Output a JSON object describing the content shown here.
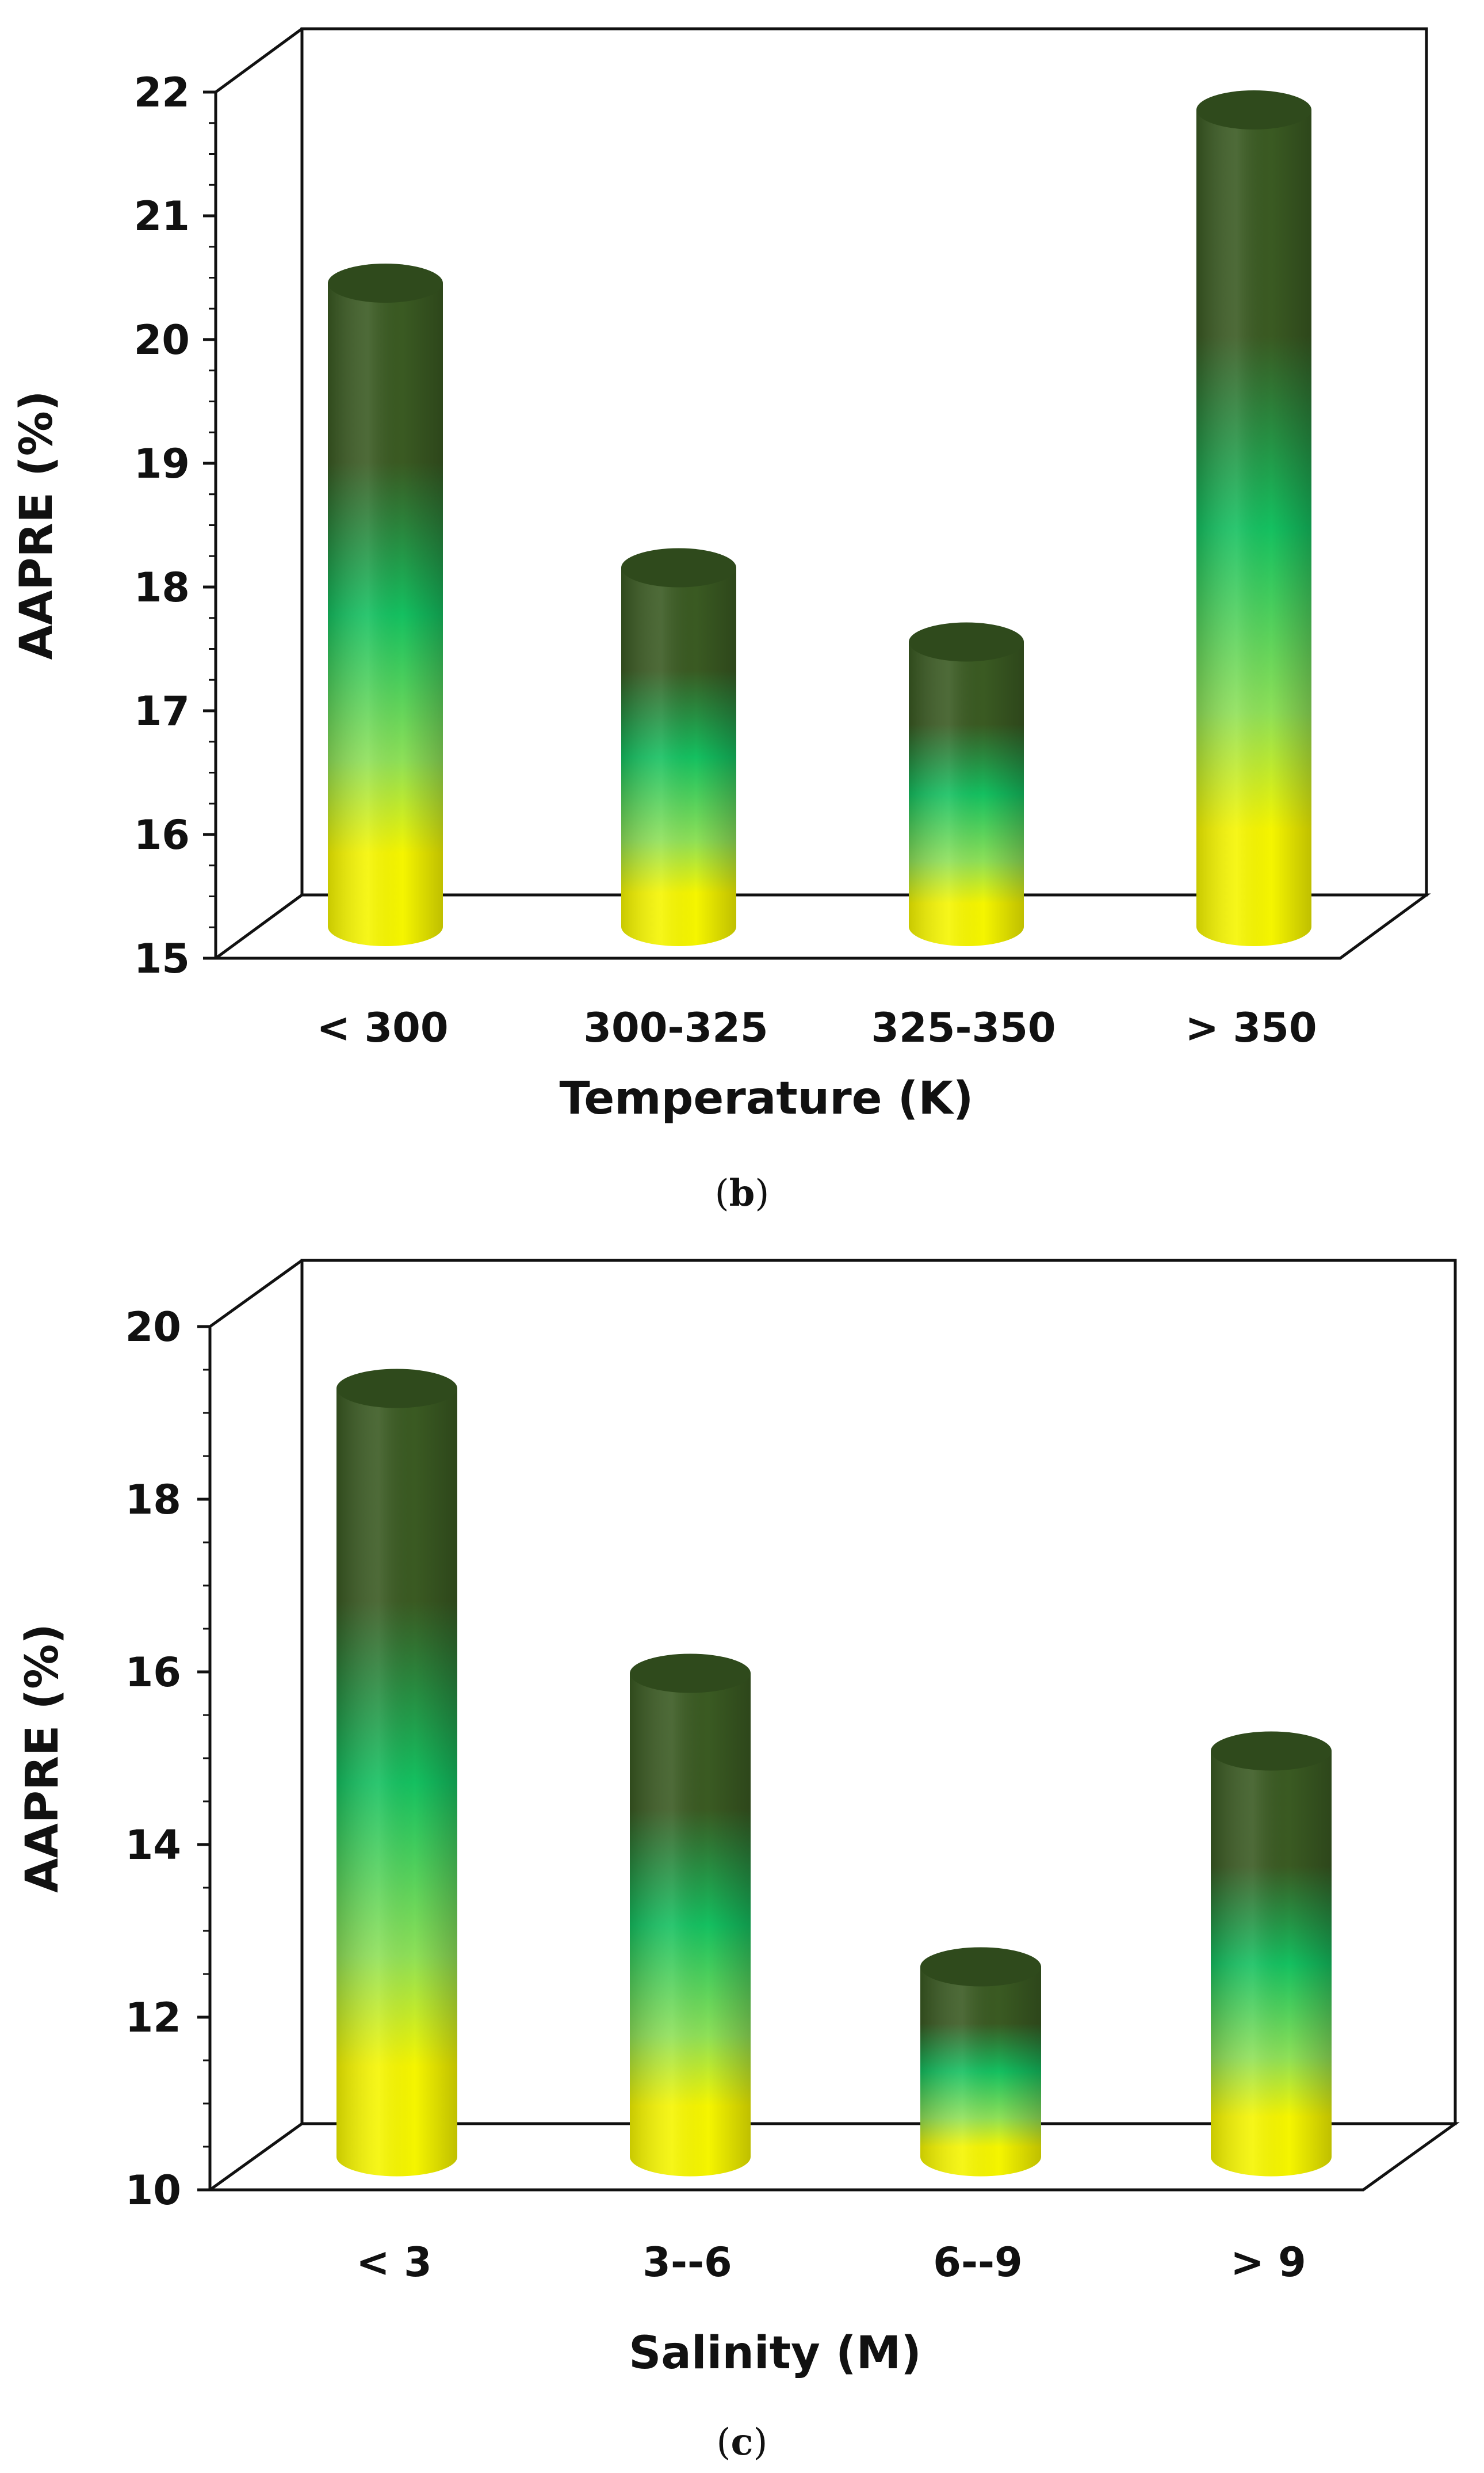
{
  "chart_data": [
    {
      "type": "bar",
      "panel_label": "b",
      "panel_open": "(",
      "panel_close": ")",
      "title": "",
      "xlabel": "Temperature (K)",
      "ylabel": "AAPRE (%)",
      "categories": [
        "< 300",
        "300-325",
        "325-350",
        "> 350"
      ],
      "values": [
        20.2,
        17.9,
        17.3,
        21.6
      ],
      "ylim": [
        15,
        22
      ],
      "yticks": [
        15,
        16,
        17,
        18,
        19,
        20,
        21,
        22
      ],
      "style": "3d-cylinder",
      "colors": {
        "top": "#3a5a22",
        "middle": "#14c060",
        "bottom": "#f5f500"
      }
    },
    {
      "type": "bar",
      "panel_label": "c",
      "panel_open": "(",
      "panel_close": ")",
      "title": "",
      "xlabel": "Salinity (M)",
      "ylabel": "AAPRE (%)",
      "categories": [
        "< 3",
        "3--6",
        "6--9",
        "> 9"
      ],
      "values": [
        18.9,
        15.6,
        12.2,
        14.7
      ],
      "ylim": [
        10,
        20
      ],
      "yticks": [
        10,
        12,
        14,
        16,
        18,
        20
      ],
      "style": "3d-cylinder",
      "colors": {
        "top": "#3a5a22",
        "middle": "#14c060",
        "bottom": "#f5f500"
      }
    }
  ]
}
